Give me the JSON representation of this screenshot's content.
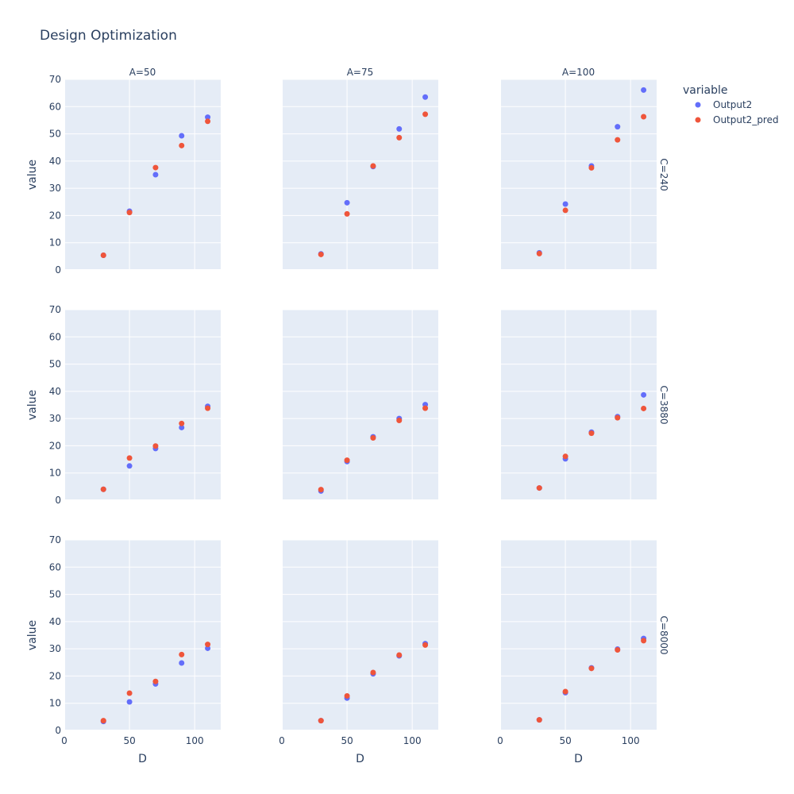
{
  "chart_data": {
    "type": "scatter",
    "title": "Design Optimization",
    "xlabel": "D",
    "ylabel": "value",
    "xlim": [
      0,
      120
    ],
    "ylim": [
      0,
      70
    ],
    "xticks": [
      0,
      50,
      100
    ],
    "yticks": [
      0,
      10,
      20,
      30,
      40,
      50,
      60,
      70
    ],
    "x": [
      30,
      50,
      70,
      90,
      110
    ],
    "columns": [
      "A=50",
      "A=75",
      "A=100"
    ],
    "rows": [
      "C=240",
      "C=3880",
      "C=8000"
    ],
    "legend": {
      "title": "variable",
      "position": "top-right",
      "items": [
        {
          "name": "Output2",
          "color": "#636efa"
        },
        {
          "name": "Output2_pred",
          "color": "#ef553b"
        }
      ]
    },
    "panels": [
      {
        "row": 0,
        "col": 0,
        "series": [
          {
            "name": "Output2",
            "values": [
              5.4,
              21.6,
              35.0,
              49.3,
              56.1
            ]
          },
          {
            "name": "Output2_pred",
            "values": [
              5.4,
              21.1,
              37.6,
              45.7,
              54.6
            ]
          }
        ]
      },
      {
        "row": 0,
        "col": 1,
        "series": [
          {
            "name": "Output2",
            "values": [
              5.9,
              24.7,
              38.0,
              51.8,
              63.5
            ]
          },
          {
            "name": "Output2_pred",
            "values": [
              5.7,
              20.6,
              38.2,
              48.6,
              57.2
            ]
          }
        ]
      },
      {
        "row": 0,
        "col": 2,
        "series": [
          {
            "name": "Output2",
            "values": [
              6.3,
              24.2,
              38.2,
              52.6,
              66.1
            ]
          },
          {
            "name": "Output2_pred",
            "values": [
              6.0,
              21.9,
              37.5,
              47.8,
              56.3
            ]
          }
        ]
      },
      {
        "row": 1,
        "col": 0,
        "series": [
          {
            "name": "Output2",
            "values": [
              4.0,
              12.6,
              19.0,
              26.7,
              34.5
            ]
          },
          {
            "name": "Output2_pred",
            "values": [
              4.0,
              15.5,
              19.9,
              28.2,
              33.8
            ]
          }
        ]
      },
      {
        "row": 1,
        "col": 1,
        "series": [
          {
            "name": "Output2",
            "values": [
              3.4,
              14.2,
              23.3,
              30.0,
              35.1
            ]
          },
          {
            "name": "Output2_pred",
            "values": [
              3.9,
              14.7,
              22.9,
              29.3,
              33.8
            ]
          }
        ]
      },
      {
        "row": 1,
        "col": 2,
        "series": [
          {
            "name": "Output2",
            "values": [
              4.5,
              15.2,
              25.0,
              30.7,
              38.7
            ]
          },
          {
            "name": "Output2_pred",
            "values": [
              4.5,
              16.1,
              24.6,
              30.3,
              33.7
            ]
          }
        ]
      },
      {
        "row": 2,
        "col": 0,
        "series": [
          {
            "name": "Output2",
            "values": [
              3.3,
              10.5,
              17.1,
              24.8,
              30.2
            ]
          },
          {
            "name": "Output2_pred",
            "values": [
              3.6,
              13.7,
              18.0,
              27.9,
              31.6
            ]
          }
        ]
      },
      {
        "row": 2,
        "col": 1,
        "series": [
          {
            "name": "Output2",
            "values": [
              3.6,
              11.9,
              20.8,
              27.4,
              31.9
            ]
          },
          {
            "name": "Output2_pred",
            "values": [
              3.6,
              12.7,
              21.3,
              27.7,
              31.4
            ]
          }
        ]
      },
      {
        "row": 2,
        "col": 2,
        "series": [
          {
            "name": "Output2",
            "values": [
              3.9,
              13.9,
              23.0,
              29.9,
              33.8
            ]
          },
          {
            "name": "Output2_pred",
            "values": [
              3.9,
              14.3,
              22.8,
              29.6,
              33.0
            ]
          }
        ]
      }
    ]
  }
}
